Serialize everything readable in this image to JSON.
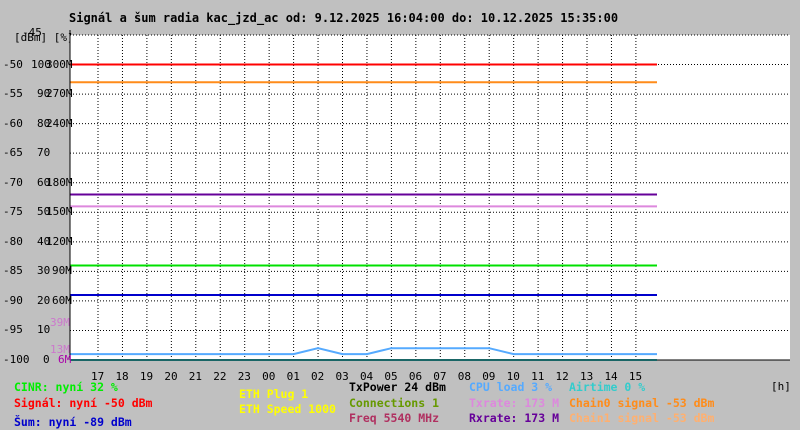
{
  "title": "Signál a šum radia kac_jzd_ac od: 9.12.2025 16:04:00 do: 10.12.2025 15:35:00",
  "units_label": "[dBm] [%]",
  "x_unit": "[h]",
  "y_axis": {
    "dbm_ticks": [
      "-45",
      "-50",
      "-55",
      "-60",
      "-65",
      "-70",
      "-75",
      "-80",
      "-85",
      "-90",
      "-95",
      "-100"
    ],
    "pct_ticks": [
      "",
      "100",
      "90",
      "80",
      "70",
      "60",
      "50",
      "40",
      "30",
      "20",
      "10",
      "0"
    ],
    "rate_ticks": [
      "",
      "300M",
      "270M",
      "240M",
      "",
      "180M",
      "150M",
      "120M",
      "90M",
      "60M",
      "",
      "6M"
    ],
    "extra_rate_ticks": [
      "39M",
      "13M"
    ]
  },
  "x_ticks": [
    "17",
    "18",
    "19",
    "20",
    "21",
    "22",
    "23",
    "00",
    "01",
    "02",
    "03",
    "04",
    "05",
    "06",
    "07",
    "08",
    "09",
    "10",
    "11",
    "12",
    "13",
    "14",
    "15"
  ],
  "legend": {
    "cinr": "CINR: nyní 32 %",
    "signal": "Signál: nyní -50 dBm",
    "noise": "Šum: nyní -89 dBm",
    "eth_plug": "ETH Plug 1",
    "eth_speed": "ETH Speed 1000",
    "txpower": "TxPower 24 dBm",
    "connections": "Connections 1",
    "freq": "Freq 5540 MHz",
    "cpu": "CPU load 3 %",
    "txrate": "Txrate: 173 M",
    "rxrate": "Rxrate: 173 M",
    "airtime": "Airtime 0 %",
    "chain0": "Chain0 signal -53 dBm",
    "chain1": "Chain1 signal -53 dBm"
  },
  "colors": {
    "signal": "#ff0000",
    "chain0": "#ff8c1a",
    "chain1": "#ffb070",
    "cinr": "#00e000",
    "noise": "#0000cc",
    "txrate": "#dd88dd",
    "rxrate": "#660099",
    "eth": "#ffff00",
    "connections": "#669900",
    "freq": "#b03060",
    "cpu": "#55aaff",
    "airtime": "#33cccc"
  },
  "chart_data": {
    "type": "line",
    "title": "Signál a šum radia kac_jzd_ac od: 9.12.2025 16:04:00 do: 10.12.2025 15:35:00",
    "xlabel": "[h]",
    "ylabel": "[dBm] [%]",
    "categories": [
      "17",
      "18",
      "19",
      "20",
      "21",
      "22",
      "23",
      "00",
      "01",
      "02",
      "03",
      "04",
      "05",
      "06",
      "07",
      "08",
      "09",
      "10",
      "11",
      "12",
      "13",
      "14",
      "15"
    ],
    "ylim_dbm": [
      -100,
      -45
    ],
    "series": [
      {
        "name": "Signál",
        "key": "signal",
        "values": [
          -50,
          -50,
          -50,
          -50,
          -50,
          -50,
          -50,
          -50,
          -50,
          -50,
          -50,
          -50,
          -50,
          -50,
          -50,
          -50,
          -50,
          -50,
          -50,
          -50,
          -50,
          -50,
          -50
        ]
      },
      {
        "name": "Chain0 signal",
        "key": "chain0",
        "values": [
          -53,
          -53,
          -53,
          -53,
          -53,
          -53,
          -53,
          -53,
          -53,
          -53,
          -53,
          -53,
          -53,
          -53,
          -53,
          -53,
          -53,
          -53,
          -53,
          -53,
          -53,
          -53,
          -53
        ]
      },
      {
        "name": "Rxrate",
        "key": "rxrate",
        "values": [
          -72,
          -72,
          -72,
          -72,
          -72,
          -72,
          -72,
          -72,
          -72,
          -72,
          -72,
          -72,
          -72,
          -72,
          -72,
          -72,
          -72,
          -72,
          -72,
          -72,
          -72,
          -72,
          -72
        ]
      },
      {
        "name": "Txrate",
        "key": "txrate",
        "values": [
          -74,
          -74,
          -74,
          -74,
          -74,
          -74,
          -74,
          -74,
          -74,
          -74,
          -74,
          -74,
          -74,
          -74,
          -74,
          -74,
          -74,
          -74,
          -74,
          -74,
          -74,
          -74,
          -74
        ]
      },
      {
        "name": "CINR",
        "key": "cinr",
        "values": [
          -84,
          -84,
          -84,
          -84,
          -84,
          -84,
          -84,
          -84,
          -84,
          -84,
          -84,
          -84,
          -84,
          -84,
          -84,
          -84,
          -84,
          -84,
          -84,
          -84,
          -84,
          -84,
          -84
        ]
      },
      {
        "name": "Šum",
        "key": "noise",
        "values": [
          -89,
          -89,
          -89,
          -89,
          -89,
          -89,
          -89,
          -89,
          -89,
          -89,
          -89,
          -89,
          -89,
          -89,
          -89,
          -89,
          -89,
          -89,
          -89,
          -89,
          -89,
          -89,
          -89
        ]
      },
      {
        "name": "CPU load",
        "key": "cpu",
        "values": [
          -99,
          -99,
          -99,
          -99,
          -99,
          -99,
          -99,
          -99,
          -99,
          -98,
          -99,
          -99,
          -98,
          -98,
          -98,
          -98,
          -98,
          -99,
          -99,
          -99,
          -99,
          -99,
          -99
        ]
      },
      {
        "name": "Airtime",
        "key": "airtime",
        "values": [
          -100,
          -100,
          -100,
          -100,
          -100,
          -100,
          -100,
          -100,
          -100,
          -100,
          -100,
          -100,
          -100,
          -100,
          -100,
          -100,
          -100,
          -100,
          -100,
          -100,
          -100,
          -100,
          -100
        ]
      }
    ]
  }
}
